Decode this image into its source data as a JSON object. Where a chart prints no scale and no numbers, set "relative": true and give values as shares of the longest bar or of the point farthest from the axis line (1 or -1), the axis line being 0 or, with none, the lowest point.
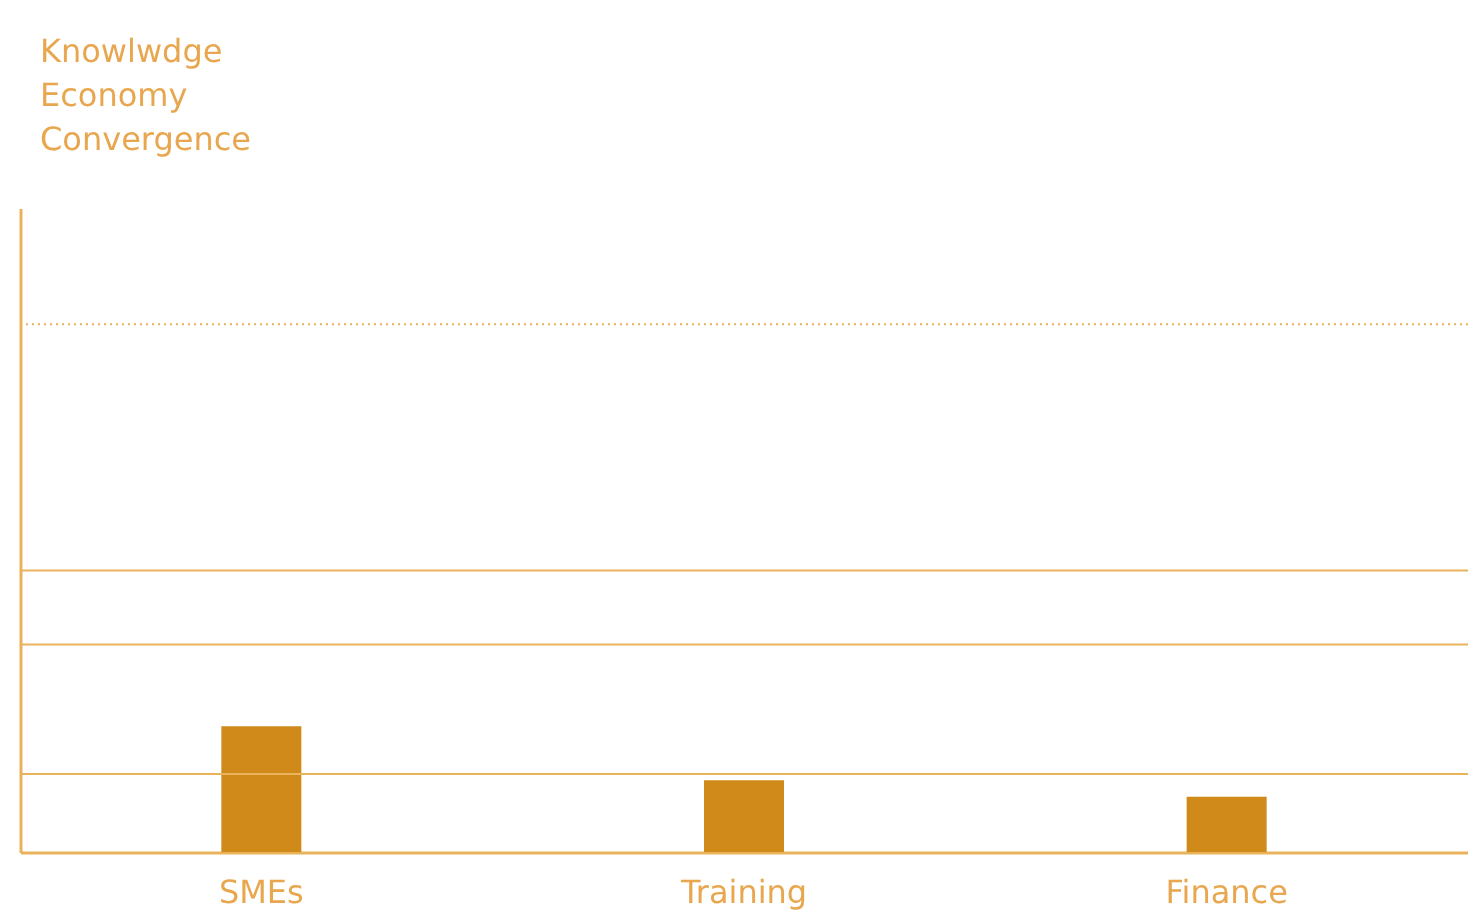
{
  "chart_data": {
    "type": "bar",
    "title": "Knowlwdge Economy Convergence",
    "relative": true,
    "categories": [
      "SMEs",
      "Training",
      "Finance"
    ],
    "values": [
      1,
      0.57,
      0.44
    ],
    "color": "#cf8a1a",
    "ref_lines": [
      {
        "axis": "y",
        "value": 0.62,
        "color": "#e8b35a",
        "line_style": "solid"
      },
      {
        "axis": "y",
        "value": 1.65,
        "color": "#e8b35a",
        "line_style": "solid"
      },
      {
        "axis": "y",
        "value": 2.24,
        "color": "#e8b35a",
        "line_style": "solid"
      },
      {
        "axis": "y",
        "value": 4.2,
        "color": "#e8b35a",
        "line_style": "dotted"
      }
    ]
  }
}
